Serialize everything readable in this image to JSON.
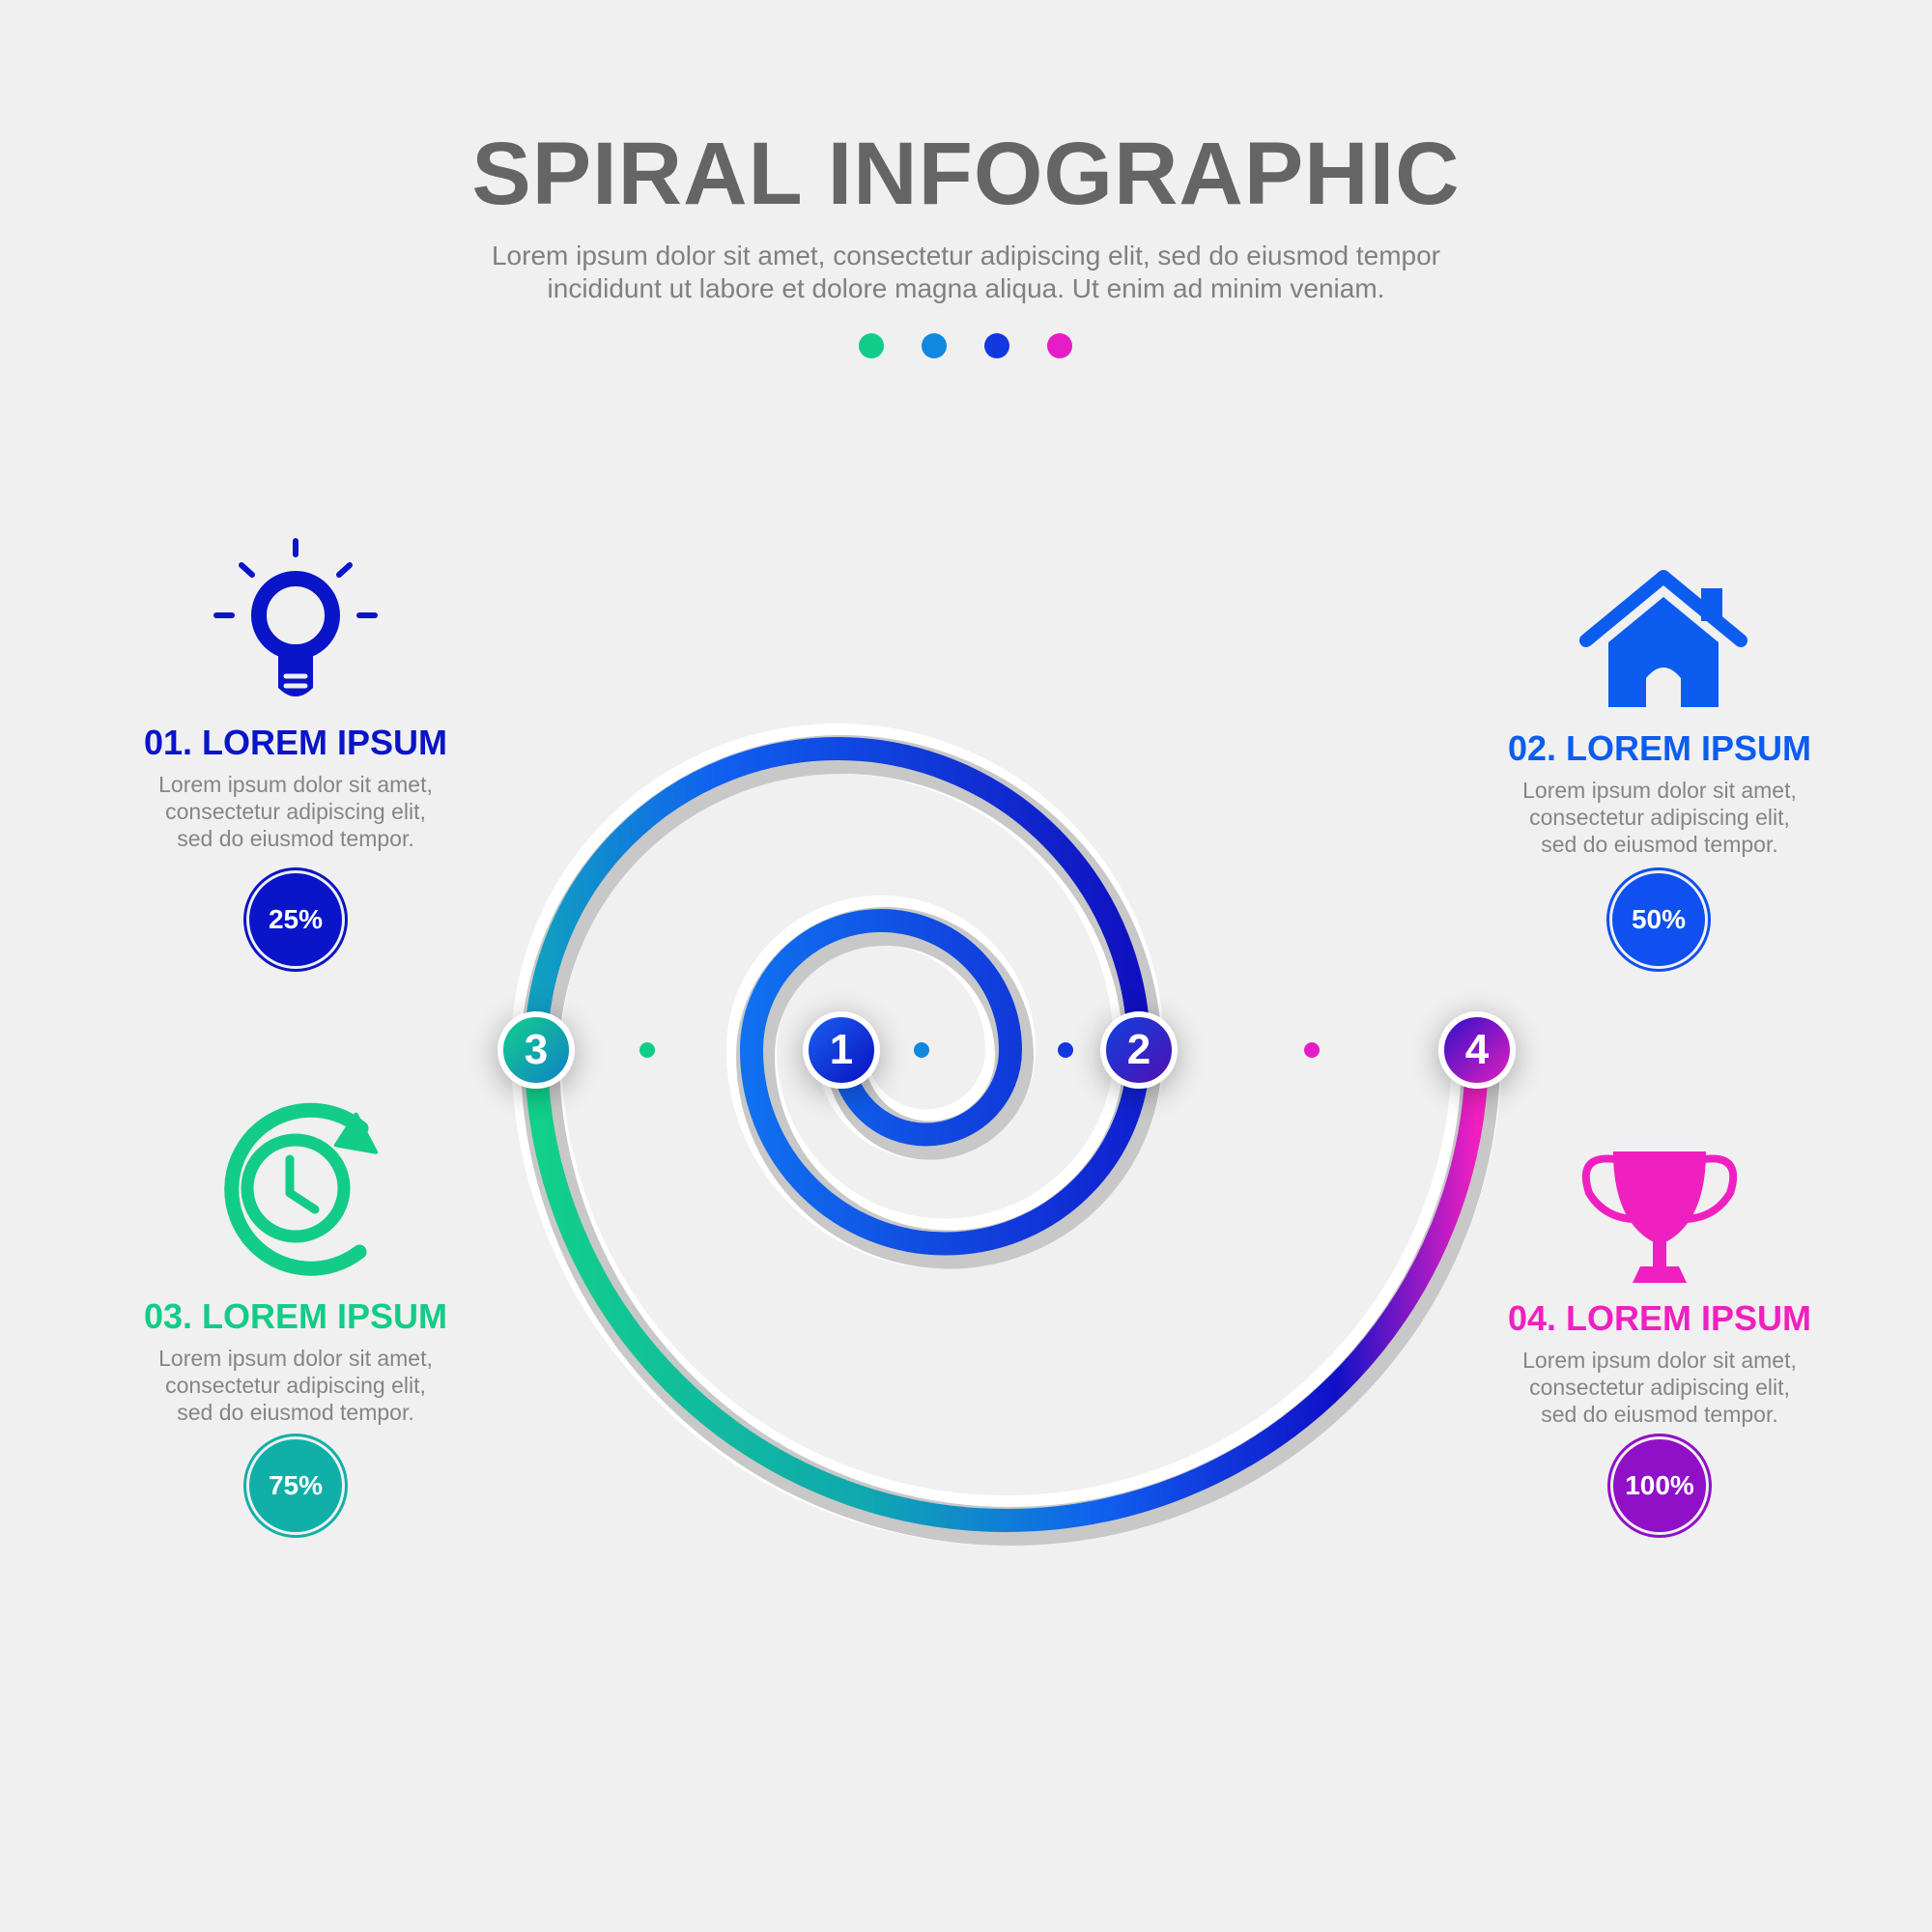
{
  "header": {
    "title": "SPIRAL INFOGRAPHIC",
    "subtitle_line1": "Lorem ipsum dolor sit amet, consectetur adipiscing elit, sed do eiusmod tempor",
    "subtitle_line2": "incididunt ut labore et dolore magna aliqua. Ut enim ad minim veniam.",
    "dot_colors": [
      "#12cc8a",
      "#1188e0",
      "#1238e0",
      "#e61cc8"
    ]
  },
  "markers": [
    {
      "label": "1",
      "color": "#1030e0"
    },
    {
      "label": "2",
      "color": "#2010c0"
    },
    {
      "label": "3",
      "color": "#10b0a0"
    },
    {
      "label": "4",
      "color": "#8010c8"
    }
  ],
  "cards": [
    {
      "title": "01. LOREM IPSUM",
      "desc1": "Lorem ipsum dolor sit amet,",
      "desc2": "consectetur adipiscing elit,",
      "desc3": "sed do eiusmod tempor.",
      "percent": "25%",
      "percent_value": 25,
      "icon": "lightbulb-icon",
      "color": "#0a14c8"
    },
    {
      "title": "02. LOREM IPSUM",
      "desc1": "Lorem ipsum dolor sit amet,",
      "desc2": "consectetur adipiscing elit,",
      "desc3": "sed do eiusmod tempor.",
      "percent": "50%",
      "percent_value": 50,
      "icon": "house-icon",
      "color": "#0d5cf0"
    },
    {
      "title": "03. LOREM IPSUM",
      "desc1": "Lorem ipsum dolor sit amet,",
      "desc2": "consectetur adipiscing elit,",
      "desc3": "sed do eiusmod tempor.",
      "percent": "75%",
      "percent_value": 75,
      "icon": "clock-refresh-icon",
      "color": "#12cc88"
    },
    {
      "title": "04. LOREM IPSUM",
      "desc1": "Lorem ipsum dolor sit amet,",
      "desc2": "consectetur adipiscing elit,",
      "desc3": "sed do eiusmod tempor.",
      "percent": "100%",
      "percent_value": 100,
      "icon": "trophy-icon",
      "color": "#f020c0"
    }
  ]
}
